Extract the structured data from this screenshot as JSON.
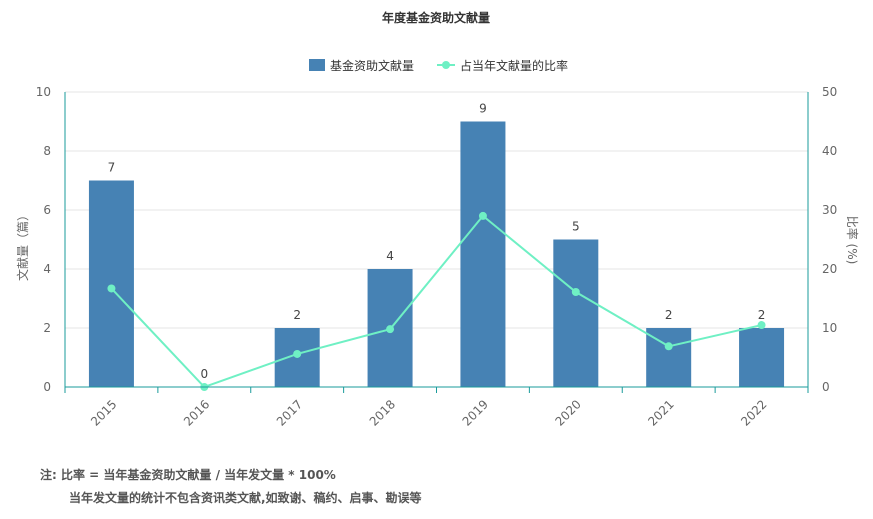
{
  "chart_data": {
    "type": "bar",
    "title": "年度基金资助文献量",
    "categories": [
      "2015",
      "2016",
      "2017",
      "2018",
      "2019",
      "2020",
      "2021",
      "2022"
    ],
    "series": [
      {
        "name": "基金资助文献量",
        "type": "bar",
        "axis": "left",
        "values": [
          7,
          0,
          2,
          4,
          9,
          5,
          2,
          2
        ]
      },
      {
        "name": "占当年文献量的比率",
        "type": "line",
        "axis": "right",
        "values": [
          16.7,
          0,
          5.6,
          9.8,
          29,
          16.1,
          6.9,
          10.5
        ]
      }
    ],
    "ylabel": "文献量（篇）",
    "ylim": [
      0,
      10
    ],
    "yticks": [
      "0",
      "2",
      "4",
      "6",
      "8",
      "10"
    ],
    "y2label": "比率 (%)",
    "y2lim": [
      0,
      50
    ],
    "y2ticks": [
      "0",
      "10",
      "20",
      "30",
      "40",
      "50"
    ],
    "bar_labels": [
      "7",
      "0",
      "2",
      "4",
      "9",
      "5",
      "2",
      "2"
    ],
    "legend_position": "top-center",
    "grid": true,
    "colors": {
      "bar": "#4682b4",
      "line": "#6ff0c4",
      "axis": "#1a9b9b",
      "grid": "#e6e6e6"
    }
  },
  "notes": {
    "line1": "注:   比率 = 当年基金资助文献量 / 当年发文量 * 100%",
    "line2": "当年发文量的统计不包含资讯类文献,如致谢、稿约、启事、勘误等"
  }
}
